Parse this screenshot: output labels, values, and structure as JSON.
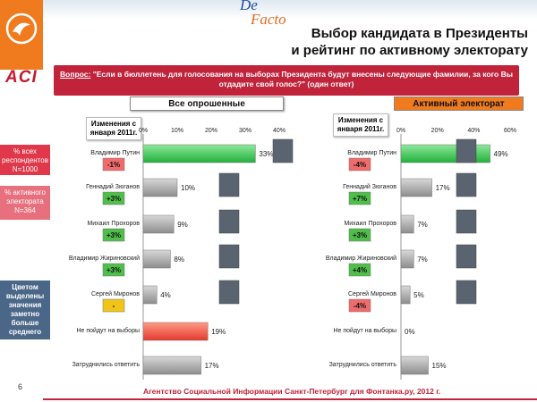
{
  "header": {
    "brand_top": "De",
    "brand_bottom": "Facto",
    "title_line1": "Выбор кандидата в Президенты",
    "title_line2": "и рейтинг по активному электорату",
    "logo": "ACI"
  },
  "question": {
    "label": "Вопрос:",
    "text": "\"Если в бюллетень для голосования на выборах Президента будут внесены следующие фамилии, за кого Вы отдадите свой голос?\" (один ответ)"
  },
  "side_labels": {
    "all": "% всех респондентов N=1000",
    "active": "% активного электората N=364",
    "note": "Цветом выделены значения заметно больше среднего"
  },
  "footer": {
    "page": "6",
    "source": "Агентство Социальной Информации Санкт-Петербург для Фонтанка.ру, 2012 г."
  },
  "colors": {
    "accent": "#f07a1e",
    "green": "#2ec24a",
    "red": "#e8413c",
    "gray": "#9a9a9a",
    "pos_change": "#4fbf4a",
    "neg_change": "#f06b6b",
    "neutral_change": "#f0c419"
  },
  "chart_data": [
    {
      "type": "bar",
      "orientation": "horizontal",
      "title": "Все опрошенные",
      "change_header": "Изменения с января 2011г.",
      "categories": [
        "Владимир Путин",
        "Геннадий Зюганов",
        "Михаил Прохоров",
        "Владимир Жириновский",
        "Сергей Миронов",
        "Не пойдут на выборы",
        "Затруднились ответить"
      ],
      "values": [
        33,
        10,
        9,
        8,
        4,
        19,
        17
      ],
      "value_labels": [
        "33%",
        "10%",
        "9%",
        "8%",
        "4%",
        "19%",
        "17%"
      ],
      "changes": [
        "-1%",
        "+3%",
        "+3%",
        "+3%",
        "-",
        null,
        null
      ],
      "highlight": [
        "green",
        "gray",
        "gray",
        "gray",
        "gray",
        "red",
        "gray"
      ],
      "xlim": [
        0,
        40
      ],
      "ticks": [
        "0%",
        "10%",
        "20%",
        "30%",
        "40%"
      ],
      "tick_values": [
        0,
        10,
        20,
        30,
        40
      ]
    },
    {
      "type": "bar",
      "orientation": "horizontal",
      "title": "Активный электорат",
      "change_header": "Изменения с января 2011г.",
      "categories": [
        "Владимир Путин",
        "Геннадий Зюганов",
        "Михаил Прохоров",
        "Владимир Жириновский",
        "Сергей Миронов",
        "Не пойдут на выборы",
        "Затруднились ответить"
      ],
      "values": [
        49,
        17,
        7,
        7,
        5,
        0,
        15
      ],
      "value_labels": [
        "49%",
        "17%",
        "7%",
        "7%",
        "5%",
        "0%",
        "15%"
      ],
      "changes": [
        "-4%",
        "+7%",
        "+3%",
        "+4%",
        "-4%",
        null,
        null
      ],
      "highlight": [
        "green",
        "gray",
        "gray",
        "gray",
        "gray",
        "gray",
        "gray"
      ],
      "xlim": [
        0,
        60
      ],
      "ticks": [
        "0%",
        "20%",
        "40%",
        "60%"
      ],
      "tick_values": [
        0,
        20,
        40,
        60
      ]
    }
  ]
}
